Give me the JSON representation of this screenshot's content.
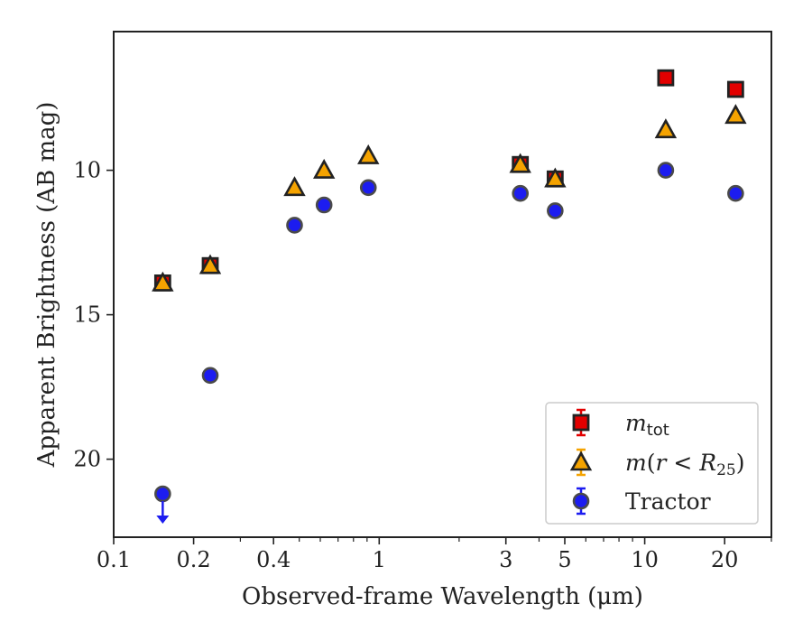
{
  "chart_data": {
    "type": "scatter",
    "title": "",
    "xlabel": "Observed-frame Wavelength (μm)",
    "ylabel": "Apparent Brightness (AB mag)",
    "xscale": "log",
    "xlim": [
      0.1,
      30
    ],
    "ylim": [
      22.7,
      5.2
    ],
    "y_inverted": true,
    "x_ticks": [
      {
        "value": 0.1,
        "label": "0.1"
      },
      {
        "value": 0.2,
        "label": "0.2"
      },
      {
        "value": 0.4,
        "label": "0.4"
      },
      {
        "value": 1,
        "label": "1"
      },
      {
        "value": 3,
        "label": "3"
      },
      {
        "value": 5,
        "label": "5"
      },
      {
        "value": 10,
        "label": "10"
      },
      {
        "value": 20,
        "label": "20"
      }
    ],
    "x_minor_ticks": [
      0.3,
      0.5,
      0.6,
      0.7,
      0.8,
      0.9,
      2,
      4,
      6,
      7,
      8,
      9,
      30
    ],
    "y_ticks": [
      {
        "value": 10,
        "label": "10"
      },
      {
        "value": 15,
        "label": "15"
      },
      {
        "value": 20,
        "label": "20"
      }
    ],
    "grid": false,
    "legend_position": "lower-right",
    "series": [
      {
        "name": "m_tot",
        "marker": "square",
        "color": "#e30000",
        "points": [
          {
            "x": 0.153,
            "y": 13.9
          },
          {
            "x": 0.231,
            "y": 13.3
          },
          {
            "x": 3.4,
            "y": 9.8
          },
          {
            "x": 4.6,
            "y": 10.3
          },
          {
            "x": 12.0,
            "y": 6.8
          },
          {
            "x": 22.0,
            "y": 7.2
          }
        ]
      },
      {
        "name": "m(r < R25)",
        "marker": "triangle",
        "color": "#f5a300",
        "points": [
          {
            "x": 0.153,
            "y": 13.9
          },
          {
            "x": 0.231,
            "y": 13.3
          },
          {
            "x": 0.48,
            "y": 10.6
          },
          {
            "x": 0.62,
            "y": 10.0
          },
          {
            "x": 0.91,
            "y": 9.5
          },
          {
            "x": 3.4,
            "y": 9.8
          },
          {
            "x": 4.6,
            "y": 10.3
          },
          {
            "x": 12.0,
            "y": 8.6
          },
          {
            "x": 22.0,
            "y": 8.1
          }
        ]
      },
      {
        "name": "Tractor",
        "marker": "circle",
        "color": "#1c1cf0",
        "points": [
          {
            "x": 0.153,
            "y": 21.2,
            "upper_limit": true
          },
          {
            "x": 0.231,
            "y": 17.1
          },
          {
            "x": 0.48,
            "y": 11.9
          },
          {
            "x": 0.62,
            "y": 11.2
          },
          {
            "x": 0.91,
            "y": 10.6
          },
          {
            "x": 3.4,
            "y": 10.8
          },
          {
            "x": 4.6,
            "y": 11.4
          },
          {
            "x": 12.0,
            "y": 10.0
          },
          {
            "x": 22.0,
            "y": 10.8
          }
        ]
      }
    ]
  }
}
